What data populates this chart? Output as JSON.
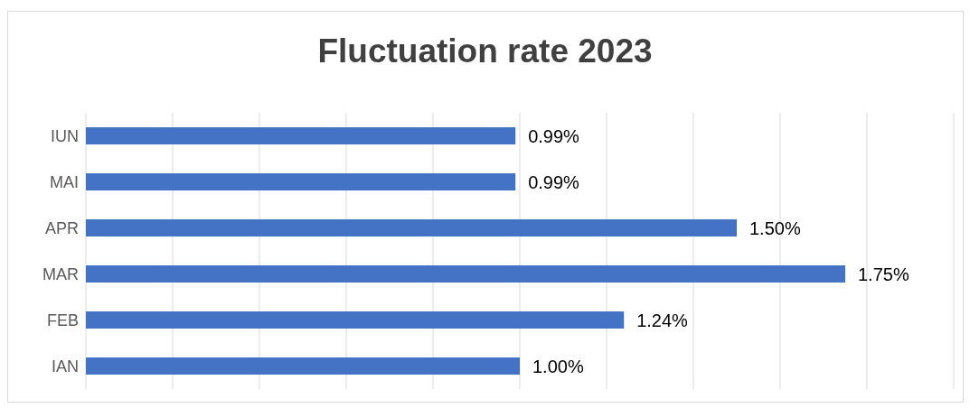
{
  "chart_data": {
    "type": "bar",
    "orientation": "horizontal",
    "title": "Fluctuation rate 2023",
    "categories": [
      "IUN",
      "MAI",
      "APR",
      "MAR",
      "FEB",
      "IAN"
    ],
    "values": [
      0.99,
      0.99,
      1.5,
      1.75,
      1.24,
      1.0
    ],
    "value_labels": [
      "0.99%",
      "0.99%",
      "1.50%",
      "1.75%",
      "1.24%",
      "1.00%"
    ],
    "color": "#4472c4",
    "xlim": [
      0,
      2
    ],
    "tick_labels": "y",
    "grid": "x"
  }
}
